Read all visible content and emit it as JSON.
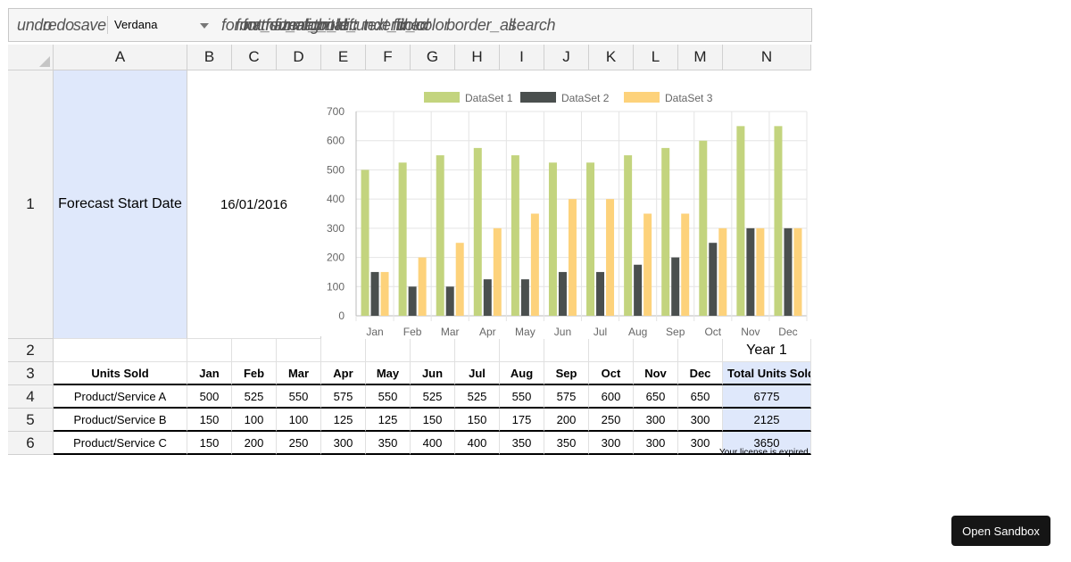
{
  "toolbar": {
    "undo": "undo",
    "redo": "redo",
    "save": "save",
    "font": "Verdana",
    "overlapped_words": [
      "format",
      "font_size",
      "format_align_left",
      "format_bold",
      "format_italic",
      "format_underlined",
      "text_color",
      "fill_color",
      "border_all",
      "search"
    ]
  },
  "columns": [
    "A",
    "B",
    "C",
    "D",
    "E",
    "F",
    "G",
    "H",
    "I",
    "J",
    "K",
    "L",
    "M",
    "N"
  ],
  "rows": [
    "1",
    "2",
    "3",
    "4",
    "5",
    "6"
  ],
  "cells": {
    "a1": "Forecast Start Date",
    "b1": "16/01/2016",
    "n2": "Year 1",
    "a3": "Units Sold",
    "months": [
      "Jan",
      "Feb",
      "Mar",
      "Apr",
      "May",
      "Jun",
      "Jul",
      "Aug",
      "Sep",
      "Oct",
      "Nov",
      "Dec"
    ],
    "n3": "Total Units Sold",
    "products": [
      {
        "name": "Product/Service A",
        "values": [
          "500",
          "525",
          "550",
          "575",
          "550",
          "525",
          "525",
          "550",
          "575",
          "600",
          "650",
          "650"
        ],
        "total": "6775"
      },
      {
        "name": "Product/Service B",
        "values": [
          "150",
          "100",
          "100",
          "125",
          "125",
          "150",
          "150",
          "175",
          "200",
          "250",
          "300",
          "300"
        ],
        "total": "2125"
      },
      {
        "name": "Product/Service C",
        "values": [
          "150",
          "200",
          "250",
          "300",
          "350",
          "400",
          "400",
          "350",
          "350",
          "300",
          "300",
          "300"
        ],
        "total": "3650"
      }
    ]
  },
  "footer": {
    "license": "Your license is expired",
    "sandbox_button": "Open Sandbox"
  },
  "chart_data": {
    "type": "bar",
    "categories": [
      "Jan",
      "Feb",
      "Mar",
      "Apr",
      "May",
      "Jun",
      "Jul",
      "Aug",
      "Sep",
      "Oct",
      "Nov",
      "Dec"
    ],
    "series": [
      {
        "name": "DataSet 1",
        "color": "#c3d47e",
        "values": [
          500,
          525,
          550,
          575,
          550,
          525,
          525,
          550,
          575,
          600,
          650,
          650
        ]
      },
      {
        "name": "DataSet 2",
        "color": "#4a4f4e",
        "values": [
          150,
          100,
          100,
          125,
          125,
          150,
          150,
          175,
          200,
          250,
          300,
          300
        ]
      },
      {
        "name": "DataSet 3",
        "color": "#fdd27b",
        "values": [
          150,
          200,
          250,
          300,
          350,
          400,
          400,
          350,
          350,
          300,
          300,
          300
        ]
      }
    ],
    "ylim": [
      0,
      700
    ],
    "yticks": [
      0,
      100,
      200,
      300,
      400,
      500,
      600,
      700
    ],
    "ytick_labels": [
      "0",
      "100",
      "200",
      "300",
      "400",
      "500",
      "600",
      "700"
    ],
    "legend": "top",
    "grid": true
  },
  "colors": {
    "highlight": "#dfe8fb",
    "toolbar_bg": "#f6f6f6",
    "button_bg": "#151515"
  }
}
